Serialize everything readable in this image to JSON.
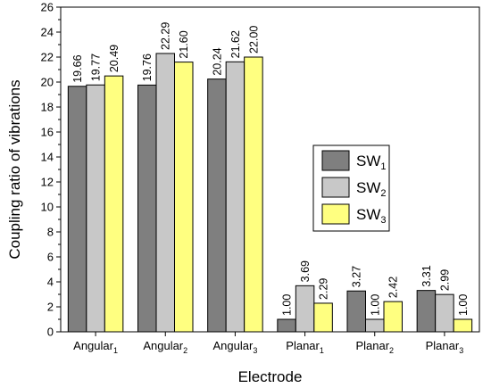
{
  "chart_data": {
    "type": "bar",
    "xlabel": "Electrode",
    "ylabel": "Coupling ratio of vibrations",
    "ylim": [
      0,
      26
    ],
    "yticks": [
      0,
      2,
      4,
      6,
      8,
      10,
      12,
      14,
      16,
      18,
      20,
      22,
      24,
      26
    ],
    "grid": false,
    "legend_position": "center-right",
    "categories": [
      {
        "base": "Angular",
        "sub": "1"
      },
      {
        "base": "Angular",
        "sub": "2"
      },
      {
        "base": "Angular",
        "sub": "3"
      },
      {
        "base": "Planar",
        "sub": "1"
      },
      {
        "base": "Planar",
        "sub": "2"
      },
      {
        "base": "Planar",
        "sub": "3"
      }
    ],
    "series": [
      {
        "name": "SW",
        "sub": "1",
        "color": "#7f7f7f",
        "values": [
          19.66,
          19.76,
          20.24,
          1.0,
          3.27,
          3.31
        ],
        "labels": [
          "19.66",
          "19.76",
          "20.24",
          "1.00",
          "3.27",
          "3.31"
        ]
      },
      {
        "name": "SW",
        "sub": "2",
        "color": "#c8c8c8",
        "values": [
          19.77,
          22.29,
          21.62,
          3.69,
          1.0,
          2.99
        ],
        "labels": [
          "19.77",
          "22.29",
          "21.62",
          "3.69",
          "1.00",
          "2.99"
        ]
      },
      {
        "name": "SW",
        "sub": "3",
        "color": "#ffff80",
        "values": [
          20.49,
          21.6,
          22.0,
          2.29,
          2.42,
          1.0
        ],
        "labels": [
          "20.49",
          "21.60",
          "22.00",
          "2.29",
          "2.42",
          "1.00"
        ]
      }
    ]
  }
}
